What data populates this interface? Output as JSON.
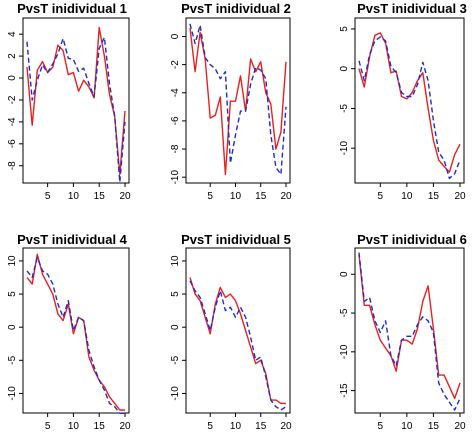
{
  "chart_data": [
    {
      "type": "line",
      "title": "PvsT inidividual 1",
      "x": [
        1,
        2,
        3,
        4,
        5,
        6,
        7,
        8,
        9,
        10,
        11,
        12,
        13,
        14,
        15,
        16,
        17,
        18,
        19,
        20
      ],
      "xticks": [
        5,
        10,
        15,
        20
      ],
      "yticks": [
        -8,
        -6,
        -4,
        -2,
        0,
        2,
        4
      ],
      "ylim": [
        -9.3,
        5.2
      ],
      "series": [
        {
          "style": "solid",
          "color": "#e8201f",
          "values": [
            1.0,
            -4.3,
            0.7,
            1.5,
            0.5,
            1.0,
            3.0,
            2.5,
            0.3,
            0.5,
            -1.2,
            -0.2,
            -0.8,
            -1.8,
            4.6,
            2.0,
            -1.5,
            -3.5,
            -8.8,
            -3.0
          ]
        },
        {
          "style": "dashed",
          "color": "#1f2ccc",
          "values": [
            3.3,
            -2.0,
            -0.2,
            1.2,
            0.5,
            1.3,
            2.2,
            3.6,
            1.8,
            1.7,
            0.6,
            0.9,
            -0.5,
            -1.7,
            2.7,
            3.7,
            -0.5,
            -3.5,
            -9.5,
            -4.0
          ]
        }
      ]
    },
    {
      "type": "line",
      "title": "PvsT inidividual 2",
      "x": [
        1,
        2,
        3,
        4,
        5,
        6,
        7,
        8,
        9,
        10,
        11,
        12,
        13,
        14,
        15,
        16,
        17,
        18,
        19,
        20
      ],
      "xticks": [
        5,
        10,
        15,
        20
      ],
      "yticks": [
        -10,
        -8,
        -6,
        -4,
        -2,
        0
      ],
      "ylim": [
        -10.2,
        1.1
      ],
      "series": [
        {
          "style": "solid",
          "color": "#e8201f",
          "values": [
            0.6,
            -2.5,
            0.3,
            -1.6,
            -5.8,
            -5.6,
            -4.3,
            -9.8,
            -4.6,
            -4.6,
            -2.8,
            -5.3,
            -1.6,
            -2.5,
            -1.8,
            -4.0,
            -4.8,
            -8.0,
            -6.8,
            -1.8
          ]
        },
        {
          "style": "dashed",
          "color": "#1f2ccc",
          "values": [
            0.9,
            -0.5,
            0.8,
            -1.5,
            -2.0,
            -2.3,
            -3.0,
            -2.5,
            -9.0,
            -7.0,
            -5.3,
            -5.3,
            -3.4,
            -2.2,
            -2.4,
            -3.0,
            -7.0,
            -9.3,
            -9.8,
            -5.0
          ]
        }
      ]
    },
    {
      "type": "line",
      "title": "PvsT inidividual 3",
      "x": [
        1,
        2,
        3,
        4,
        5,
        6,
        7,
        8,
        9,
        10,
        11,
        12,
        13,
        14,
        15,
        16,
        17,
        18,
        19,
        20
      ],
      "xticks": [
        5,
        10,
        15,
        20
      ],
      "yticks": [
        -10,
        -5,
        0,
        5
      ],
      "ylim": [
        -14.0,
        6.0
      ],
      "series": [
        {
          "style": "solid",
          "color": "#e8201f",
          "values": [
            0.0,
            -2.3,
            1.5,
            4.2,
            4.5,
            3.2,
            -0.5,
            -0.3,
            -3.5,
            -3.8,
            -3.0,
            -1.5,
            -0.5,
            -5.0,
            -9.0,
            -11.5,
            -12.3,
            -13.0,
            -10.8,
            -9.5
          ]
        },
        {
          "style": "dashed",
          "color": "#1f2ccc",
          "values": [
            1.0,
            -1.5,
            1.8,
            3.5,
            4.0,
            3.5,
            0.3,
            -0.5,
            -3.0,
            -3.5,
            -3.5,
            -2.0,
            0.8,
            -1.5,
            -6.5,
            -10.5,
            -11.5,
            -13.8,
            -13.2,
            -11.5
          ]
        }
      ]
    },
    {
      "type": "line",
      "title": "PvsT inidividual 4",
      "x": [
        1,
        2,
        3,
        4,
        5,
        6,
        7,
        8,
        9,
        10,
        11,
        12,
        13,
        14,
        15,
        16,
        17,
        18,
        19,
        20
      ],
      "xticks": [
        5,
        10,
        15,
        20
      ],
      "yticks": [
        -10,
        -5,
        0,
        5,
        10
      ],
      "ylim": [
        -12.5,
        11.5
      ],
      "series": [
        {
          "style": "solid",
          "color": "#e8201f",
          "values": [
            7.5,
            6.5,
            11.0,
            8.0,
            6.5,
            5.0,
            2.0,
            1.0,
            3.5,
            -1.0,
            1.5,
            1.0,
            -4.5,
            -6.5,
            -8.0,
            -9.0,
            -10.5,
            -11.5,
            -12.5,
            -12.5
          ]
        },
        {
          "style": "dashed",
          "color": "#1f2ccc",
          "values": [
            8.5,
            7.5,
            10.5,
            8.5,
            8.0,
            6.5,
            3.5,
            1.5,
            4.0,
            -0.5,
            1.5,
            1.0,
            -3.5,
            -6.0,
            -8.0,
            -9.5,
            -11.5,
            -12.0,
            -13.0,
            -13.0
          ]
        }
      ]
    },
    {
      "type": "line",
      "title": "PvsT inidividual 5",
      "x": [
        1,
        2,
        3,
        4,
        5,
        6,
        7,
        8,
        9,
        10,
        11,
        12,
        13,
        14,
        15,
        16,
        17,
        18,
        19,
        20
      ],
      "xticks": [
        5,
        10,
        15,
        20
      ],
      "yticks": [
        -10,
        -5,
        0,
        5,
        10
      ],
      "ylim": [
        -12.5,
        11.5
      ],
      "series": [
        {
          "style": "solid",
          "color": "#e8201f",
          "values": [
            7.5,
            5.0,
            4.0,
            1.5,
            -1.0,
            3.5,
            6.0,
            4.5,
            5.0,
            4.0,
            2.0,
            -0.5,
            -3.0,
            -5.5,
            -5.0,
            -7.0,
            -11.0,
            -11.0,
            -11.5,
            -11.5
          ]
        },
        {
          "style": "dashed",
          "color": "#1f2ccc",
          "values": [
            7.0,
            5.5,
            4.5,
            2.0,
            -0.5,
            3.0,
            5.5,
            2.5,
            3.0,
            1.5,
            3.0,
            1.5,
            -1.5,
            -5.0,
            -4.5,
            -7.5,
            -11.0,
            -12.0,
            -12.5,
            -12.0
          ]
        }
      ]
    },
    {
      "type": "line",
      "title": "PvsT inidividual 6",
      "x": [
        1,
        2,
        3,
        4,
        5,
        6,
        7,
        8,
        9,
        10,
        11,
        12,
        13,
        14,
        15,
        16,
        17,
        18,
        19,
        20
      ],
      "xticks": [
        5,
        10,
        15,
        20
      ],
      "yticks": [
        -15,
        -10,
        -5,
        0
      ],
      "ylim": [
        -17.5,
        3.0
      ],
      "series": [
        {
          "style": "solid",
          "color": "#e8201f",
          "values": [
            2.5,
            -4.0,
            -4.0,
            -6.5,
            -8.5,
            -9.5,
            -10.5,
            -12.5,
            -8.5,
            -8.5,
            -9.0,
            -7.0,
            -3.5,
            -1.5,
            -7.0,
            -13.0,
            -13.0,
            -14.5,
            -16.0,
            -14.0
          ]
        },
        {
          "style": "dashed",
          "color": "#1f2ccc",
          "values": [
            2.8,
            -3.5,
            -3.0,
            -6.0,
            -7.5,
            -6.0,
            -10.5,
            -11.8,
            -8.5,
            -8.0,
            -8.0,
            -6.5,
            -5.5,
            -6.0,
            -7.5,
            -14.0,
            -15.5,
            -16.5,
            -17.5,
            -16.0
          ]
        }
      ]
    }
  ]
}
